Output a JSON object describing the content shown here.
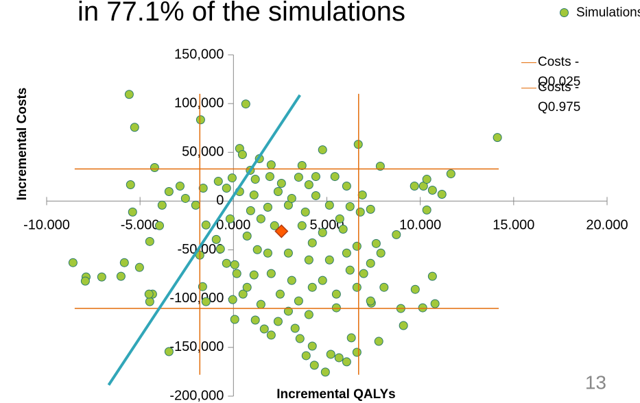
{
  "chart_data": {
    "type": "scatter",
    "title": "in 77.1% of the simulations",
    "page_number": "13",
    "x_label": "Incremental QALYs",
    "y_label": "Incremental Costs",
    "xlim": [
      -10000,
      20000
    ],
    "ylim": [
      -200000,
      150000
    ],
    "xticks": [
      {
        "value": -10000,
        "label": "-10.000"
      },
      {
        "value": -5000,
        "label": "-5.000"
      },
      {
        "value": 0,
        "label": "0.000"
      },
      {
        "value": 5000,
        "label": "5.000"
      },
      {
        "value": 10000,
        "label": "10.000"
      },
      {
        "value": 15000,
        "label": "15.000"
      },
      {
        "value": 20000,
        "label": "20.000"
      }
    ],
    "yticks": [
      {
        "value": -200000,
        "label": "-200,000"
      },
      {
        "value": -150000,
        "label": "-150,000"
      },
      {
        "value": -100000,
        "label": "-100,000"
      },
      {
        "value": -50000,
        "label": "-50,000"
      },
      0,
      {
        "value": 50000,
        "label": "50,000"
      },
      {
        "value": 100000,
        "label": "100,000"
      },
      {
        "value": 150000,
        "label": "150,000"
      }
    ],
    "legend": "top-right",
    "series": [
      {
        "name": "Simulations",
        "mode": "markers",
        "marker": "circle",
        "color": "#a2c83a",
        "edge": "#2b7a6c",
        "x": [
          -5580,
          -5290,
          660,
          -1760,
          14130,
          -4220,
          -5510,
          -8590,
          -7890,
          -7930,
          -7050,
          -6020,
          -5840,
          -5030,
          -4480,
          -4330,
          -4520,
          -3450,
          -4480,
          -3820,
          -5400,
          -3960,
          -3450,
          -2570,
          -2020,
          -2860,
          10650,
          10350,
          9690,
          10170,
          10650,
          11640,
          10350,
          11160,
          8720,
          7640,
          7860,
          6680,
          4770,
          3670,
          9730,
          10790,
          10130,
          8960,
          9100,
          7780,
          5650,
          6060,
          4920,
          3890,
          4330,
          5210,
          4220,
          3560,
          6610,
          6310,
          7380,
          70,
          -40,
          -1470,
          -1650,
          -1800,
          -1470,
          -700,
          70,
          1100,
          1650,
          1170,
          510,
          -1620,
          330,
          480,
          1390,
          2020,
          900,
          -70,
          -370,
          -810,
          330,
          1170,
          1950,
          2570,
          3490,
          4410,
          5430,
          6060,
          4410,
          2940,
          1840,
          920,
          5140,
          6240,
          6790,
          7340,
          6900,
          1470,
          2200,
          3670,
          4770,
          5870,
          6610,
          730,
          1280,
          2940,
          4040,
          5140,
          6240,
          2020,
          3120,
          4220,
          5510,
          6610,
          2500,
          1470,
          2940,
          4040,
          5510,
          2390,
          3300,
          2020,
          730,
          180,
          -370,
          -920,
          -180,
          2390,
          4040,
          3120,
          3850,
          5690,
          4220,
          6060,
          7340,
          7890,
          6970,
          8060,
          7340,
          1100,
          1840,
          3490,
          4770
        ],
        "values": [
          109400,
          75700,
          99600,
          83400,
          65200,
          34400,
          16800,
          -63100,
          -77800,
          -82000,
          -77800,
          -77100,
          -63100,
          -68000,
          -103100,
          -95400,
          -95400,
          -154300,
          -41400,
          -4200,
          -11200,
          -25200,
          9800,
          2800,
          -4200,
          15400,
          -77100,
          -9100,
          15400,
          15400,
          11200,
          28000,
          22400,
          7000,
          -34400,
          -43500,
          35800,
          58200,
          52600,
          36500,
          -90500,
          -105200,
          -109400,
          -110100,
          -127600,
          -143800,
          -160600,
          -164800,
          -175300,
          -158500,
          -168300,
          -157100,
          -148700,
          -141000,
          -155000,
          -140200,
          -104500,
          -121300,
          -101000,
          -103100,
          -87700,
          -55400,
          -24500,
          -49100,
          -65200,
          -75700,
          -131100,
          -122000,
          -95400,
          13300,
          54000,
          47700,
          43500,
          37200,
          31600,
          23800,
          13300,
          20300,
          9800,
          22400,
          25200,
          18200,
          24500,
          25200,
          25200,
          15400,
          5600,
          -4200,
          -6300,
          -9800,
          -4200,
          -5600,
          -11200,
          -8400,
          6300,
          -18200,
          -25200,
          -25200,
          -32300,
          -28800,
          -46300,
          -35800,
          -49800,
          -53300,
          -60300,
          -60300,
          -70800,
          -74300,
          -81300,
          -88400,
          -95400,
          -88400,
          -95400,
          -105900,
          -112900,
          -116400,
          -109400,
          -123400,
          -130400,
          -137400,
          -88400,
          -74300,
          -63800,
          -39300,
          -18200,
          9800,
          16800,
          2800,
          -11200,
          -18200,
          -42800,
          -53300,
          -63800,
          -53300,
          -74300,
          -88400,
          -102400,
          6300,
          -53300,
          -102400,
          -81300
        ]
      },
      {
        "name": "Costs - Q0.025",
        "mode": "line",
        "color": "#e36c09",
        "x": [
          -8500,
          14200
        ],
        "values": [
          -110000,
          -110000
        ]
      },
      {
        "name": "Costs - Q0.975",
        "mode": "line",
        "color": "#e36c09",
        "x": [
          -8500,
          14200
        ],
        "values": [
          33000,
          33000
        ]
      },
      {
        "mode": "line",
        "color": "#e36c09",
        "x": [
          -1800,
          -1800
        ],
        "values": [
          110000,
          -178000
        ]
      },
      {
        "mode": "line",
        "color": "#e36c09",
        "x": [
          6700,
          6700
        ],
        "values": [
          110000,
          -178000
        ]
      },
      {
        "mode": "line",
        "color": "#31a6b8",
        "width": 4,
        "x": [
          -6680,
          3560
        ],
        "values": [
          -188600,
          108700
        ]
      },
      {
        "mode": "markers",
        "marker": "diamond",
        "color": "#ff5a00",
        "edge": "#b03a10",
        "x": [
          2570
        ],
        "values": [
          -30900
        ]
      }
    ]
  }
}
